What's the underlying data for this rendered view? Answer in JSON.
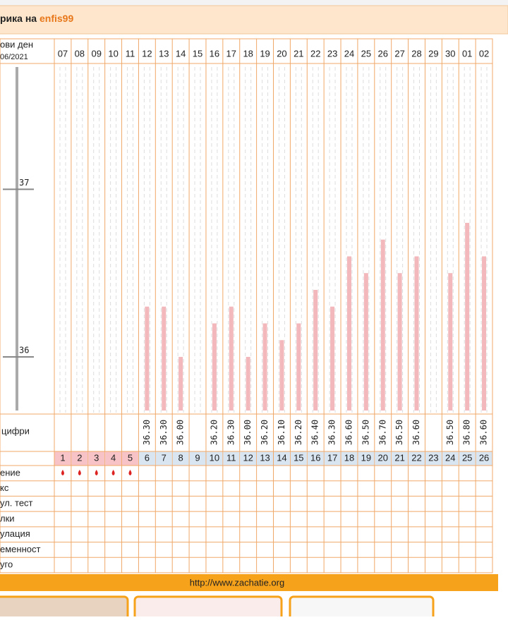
{
  "header": {
    "title_prefix": "рика на",
    "user": "enfis99"
  },
  "table": {
    "corner": [
      "ови ден",
      "06/2021"
    ],
    "temperature_label": "цифри",
    "cycle_days": [
      1,
      2,
      3,
      4,
      5,
      6,
      7,
      8,
      9,
      10,
      11,
      12,
      13,
      14,
      15,
      16,
      17,
      18,
      19,
      20,
      21,
      22,
      23,
      24,
      25,
      26
    ],
    "cycle_day_fill": [
      "#f7c3c6",
      "#f7c3c6",
      "#f7c3c6",
      "#f7c3c6",
      "#f7c3c6",
      "#d9e6f2",
      "#d9e6f2",
      "#d9e6f2",
      "#d9e6f2",
      "#d9e6f2",
      "#d9e6f2",
      "#d9e6f2",
      "#d9e6f2",
      "#d9e6f2",
      "#d9e6f2",
      "#d9e6f2",
      "#d9e6f2",
      "#d9e6f2",
      "#d9e6f2",
      "#d9e6f2",
      "#d9e6f2",
      "#d9e6f2",
      "#d9e6f2",
      "#d9e6f2",
      "#d9e6f2",
      "#d9e6f2"
    ],
    "rows": [
      "ение",
      "кс",
      "ул. тест",
      "лки",
      "улация",
      "еменност",
      "уго"
    ]
  },
  "chart_data": {
    "type": "bar",
    "categories": [
      "07",
      "08",
      "09",
      "10",
      "11",
      "12",
      "13",
      "14",
      "15",
      "16",
      "17",
      "18",
      "19",
      "20",
      "21",
      "22",
      "23",
      "24",
      "25",
      "26",
      "27",
      "28",
      "29",
      "30",
      "01",
      "02"
    ],
    "values": [
      null,
      null,
      null,
      null,
      null,
      36.3,
      36.3,
      36.0,
      null,
      36.2,
      36.3,
      36.0,
      36.2,
      36.1,
      36.2,
      36.4,
      36.3,
      36.6,
      36.5,
      36.7,
      36.5,
      36.6,
      null,
      36.5,
      36.8,
      36.6
    ],
    "value_labels": [
      null,
      null,
      null,
      null,
      null,
      "36.30",
      "36.30",
      "36.00",
      null,
      "36.20",
      "36.30",
      "36.00",
      "36.20",
      "36.10",
      "36.20",
      "36.40",
      "36.30",
      "36.60",
      "36.50",
      "36.70",
      "36.50",
      "36.60",
      null,
      "36.50",
      "36.80",
      "36.60"
    ],
    "color": "#f2b8bb",
    "ylim": [
      35.68,
      37.73
    ],
    "yticks": [
      36,
      37
    ]
  },
  "footer": "http://www.zachatie.org"
}
